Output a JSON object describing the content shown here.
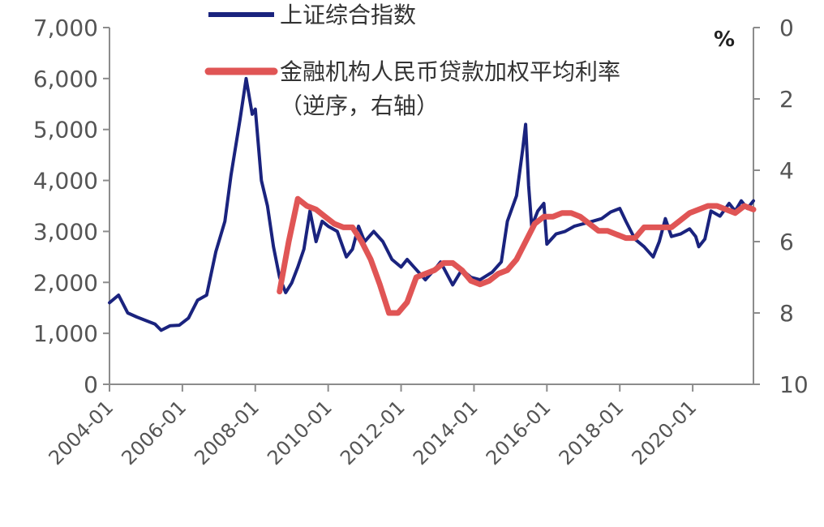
{
  "chart_data": {
    "type": "line",
    "title": "",
    "y_left": {
      "range": [
        0,
        7000
      ],
      "ticks": [
        0,
        1000,
        2000,
        3000,
        4000,
        5000,
        6000,
        7000
      ],
      "tick_labels": [
        "0",
        "1,000",
        "2,000",
        "3,000",
        "4,000",
        "5,000",
        "6,000",
        "7,000"
      ]
    },
    "y_right": {
      "range": [
        0,
        10
      ],
      "inverted": true,
      "unit": "%",
      "ticks": [
        0,
        2,
        4,
        6,
        8,
        10
      ],
      "tick_labels": [
        "0",
        "2",
        "4",
        "6",
        "8",
        "10"
      ]
    },
    "x_axis": {
      "range": [
        "2004-01",
        "2021-09"
      ],
      "tick_labels": [
        "2004-01",
        "2006-01",
        "2008-01",
        "2010-01",
        "2012-01",
        "2014-01",
        "2016-01",
        "2018-01",
        "2020-01"
      ],
      "label_rotation": -45
    },
    "grid": false,
    "legend_position": "top",
    "series": [
      {
        "name": "上证综合指数",
        "axis": "left",
        "color": "#1a237e",
        "points": [
          [
            "2004-01",
            1600
          ],
          [
            "2004-04",
            1750
          ],
          [
            "2004-07",
            1400
          ],
          [
            "2004-10",
            1320
          ],
          [
            "2005-01",
            1250
          ],
          [
            "2005-04",
            1180
          ],
          [
            "2005-06",
            1060
          ],
          [
            "2005-09",
            1150
          ],
          [
            "2005-12",
            1160
          ],
          [
            "2006-03",
            1300
          ],
          [
            "2006-06",
            1650
          ],
          [
            "2006-09",
            1750
          ],
          [
            "2006-12",
            2600
          ],
          [
            "2007-03",
            3200
          ],
          [
            "2007-05",
            4100
          ],
          [
            "2007-08",
            5200
          ],
          [
            "2007-10",
            6000
          ],
          [
            "2007-12",
            5300
          ],
          [
            "2008-01",
            5400
          ],
          [
            "2008-03",
            4000
          ],
          [
            "2008-05",
            3500
          ],
          [
            "2008-07",
            2700
          ],
          [
            "2008-09",
            2100
          ],
          [
            "2008-11",
            1800
          ],
          [
            "2009-01",
            1990
          ],
          [
            "2009-03",
            2300
          ],
          [
            "2009-05",
            2650
          ],
          [
            "2009-07",
            3400
          ],
          [
            "2009-09",
            2800
          ],
          [
            "2009-11",
            3200
          ],
          [
            "2010-01",
            3100
          ],
          [
            "2010-04",
            3000
          ],
          [
            "2010-07",
            2500
          ],
          [
            "2010-09",
            2650
          ],
          [
            "2010-11",
            3100
          ],
          [
            "2011-01",
            2800
          ],
          [
            "2011-04",
            3000
          ],
          [
            "2011-07",
            2800
          ],
          [
            "2011-10",
            2450
          ],
          [
            "2012-01",
            2300
          ],
          [
            "2012-03",
            2450
          ],
          [
            "2012-06",
            2250
          ],
          [
            "2012-09",
            2050
          ],
          [
            "2012-12",
            2250
          ],
          [
            "2013-02",
            2400
          ],
          [
            "2013-06",
            1950
          ],
          [
            "2013-09",
            2250
          ],
          [
            "2013-12",
            2100
          ],
          [
            "2014-03",
            2050
          ],
          [
            "2014-07",
            2200
          ],
          [
            "2014-10",
            2400
          ],
          [
            "2014-12",
            3200
          ],
          [
            "2015-03",
            3700
          ],
          [
            "2015-05",
            4600
          ],
          [
            "2015-06",
            5100
          ],
          [
            "2015-07",
            3900
          ],
          [
            "2015-08",
            3100
          ],
          [
            "2015-10",
            3400
          ],
          [
            "2015-12",
            3550
          ],
          [
            "2016-01",
            2750
          ],
          [
            "2016-04",
            2950
          ],
          [
            "2016-07",
            3000
          ],
          [
            "2016-10",
            3100
          ],
          [
            "2017-01",
            3150
          ],
          [
            "2017-04",
            3200
          ],
          [
            "2017-07",
            3250
          ],
          [
            "2017-10",
            3380
          ],
          [
            "2018-01",
            3450
          ],
          [
            "2018-03",
            3200
          ],
          [
            "2018-06",
            2850
          ],
          [
            "2018-09",
            2700
          ],
          [
            "2018-12",
            2500
          ],
          [
            "2019-02",
            2800
          ],
          [
            "2019-04",
            3250
          ],
          [
            "2019-06",
            2900
          ],
          [
            "2019-09",
            2950
          ],
          [
            "2019-12",
            3050
          ],
          [
            "2020-02",
            2900
          ],
          [
            "2020-03",
            2700
          ],
          [
            "2020-05",
            2850
          ],
          [
            "2020-07",
            3400
          ],
          [
            "2020-10",
            3300
          ],
          [
            "2021-01",
            3550
          ],
          [
            "2021-03",
            3400
          ],
          [
            "2021-05",
            3600
          ],
          [
            "2021-07",
            3450
          ],
          [
            "2021-09",
            3600
          ]
        ]
      },
      {
        "name": "金融机构人民币贷款加权平均利率",
        "name_line2": "（逆序，右轴）",
        "axis": "right",
        "inverted": true,
        "color": "#e05555",
        "points": [
          [
            "2008-09",
            7.4
          ],
          [
            "2008-12",
            6.0
          ],
          [
            "2009-03",
            4.8
          ],
          [
            "2009-06",
            5.0
          ],
          [
            "2009-09",
            5.1
          ],
          [
            "2009-12",
            5.3
          ],
          [
            "2010-03",
            5.5
          ],
          [
            "2010-06",
            5.6
          ],
          [
            "2010-09",
            5.6
          ],
          [
            "2010-12",
            6.0
          ],
          [
            "2011-03",
            6.5
          ],
          [
            "2011-06",
            7.2
          ],
          [
            "2011-09",
            8.0
          ],
          [
            "2011-12",
            8.0
          ],
          [
            "2012-03",
            7.7
          ],
          [
            "2012-06",
            7.0
          ],
          [
            "2012-09",
            6.9
          ],
          [
            "2012-12",
            6.8
          ],
          [
            "2013-03",
            6.6
          ],
          [
            "2013-06",
            6.6
          ],
          [
            "2013-09",
            6.8
          ],
          [
            "2013-12",
            7.1
          ],
          [
            "2014-03",
            7.2
          ],
          [
            "2014-06",
            7.1
          ],
          [
            "2014-09",
            6.9
          ],
          [
            "2014-12",
            6.8
          ],
          [
            "2015-03",
            6.5
          ],
          [
            "2015-06",
            6.0
          ],
          [
            "2015-09",
            5.5
          ],
          [
            "2015-12",
            5.3
          ],
          [
            "2016-03",
            5.3
          ],
          [
            "2016-06",
            5.2
          ],
          [
            "2016-09",
            5.2
          ],
          [
            "2016-12",
            5.3
          ],
          [
            "2017-03",
            5.5
          ],
          [
            "2017-06",
            5.7
          ],
          [
            "2017-09",
            5.7
          ],
          [
            "2017-12",
            5.8
          ],
          [
            "2018-03",
            5.9
          ],
          [
            "2018-06",
            5.9
          ],
          [
            "2018-09",
            5.6
          ],
          [
            "2018-12",
            5.6
          ],
          [
            "2019-03",
            5.6
          ],
          [
            "2019-06",
            5.6
          ],
          [
            "2019-09",
            5.4
          ],
          [
            "2019-12",
            5.2
          ],
          [
            "2020-03",
            5.1
          ],
          [
            "2020-06",
            5.0
          ],
          [
            "2020-09",
            5.0
          ],
          [
            "2020-12",
            5.1
          ],
          [
            "2021-03",
            5.2
          ],
          [
            "2021-06",
            5.0
          ],
          [
            "2021-09",
            5.1
          ]
        ]
      }
    ]
  }
}
